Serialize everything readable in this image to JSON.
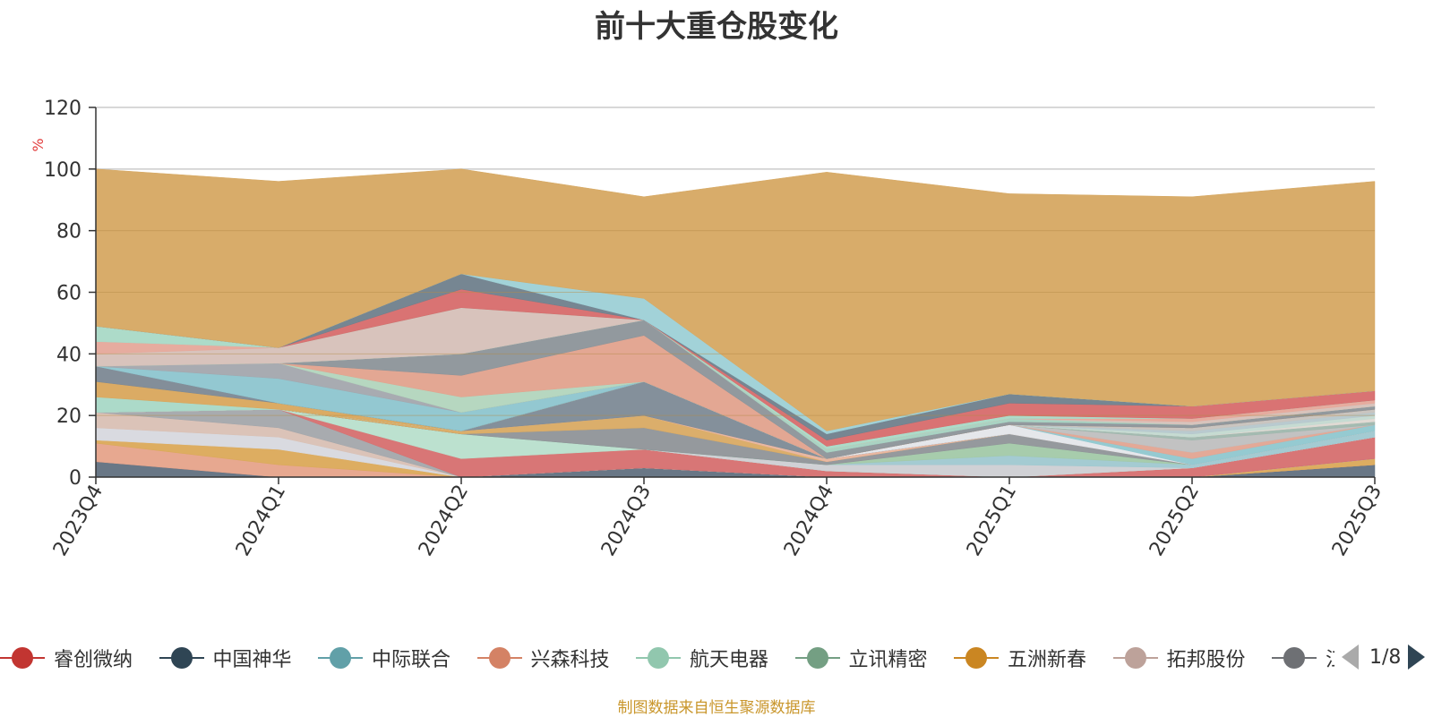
{
  "chart_data": {
    "type": "area",
    "title": "前十大重仓股变化",
    "ylabel": "%",
    "ylim": [
      0,
      120
    ],
    "yticks": [
      "0",
      "20",
      "40",
      "60",
      "80",
      "100",
      "120"
    ],
    "x": [
      "2023Q4",
      "2024Q1",
      "2024Q2",
      "2024Q3",
      "2024Q4",
      "2025Q1",
      "2025Q2",
      "2025Q3"
    ],
    "stacked": true,
    "grid": true,
    "legend_position": "bottom",
    "series": [
      {
        "name": "",
        "color": "#61707f",
        "values": [
          5,
          0,
          0,
          3,
          0,
          0,
          0,
          4
        ]
      },
      {
        "name": "",
        "color": "#e6a38a",
        "values": [
          6,
          4,
          0,
          0,
          0,
          0,
          0,
          0
        ]
      },
      {
        "name": "",
        "color": "#dba958",
        "values": [
          1,
          5,
          0,
          0,
          0,
          0,
          0,
          2
        ]
      },
      {
        "name": "",
        "color": "#d7d8de",
        "values": [
          4,
          4,
          0,
          0,
          0,
          0,
          0,
          0
        ]
      },
      {
        "name": "",
        "color": "#d9c0b4",
        "values": [
          5,
          3,
          0,
          0,
          0,
          0,
          0,
          0
        ]
      },
      {
        "name": "",
        "color": "#a3a6ab",
        "values": [
          0,
          6,
          0,
          0,
          0,
          0,
          0,
          0
        ]
      },
      {
        "name": "",
        "color": "#d66f6f",
        "values": [
          0,
          0,
          6,
          6,
          2,
          0,
          3,
          7
        ]
      },
      {
        "name": "",
        "color": "#b8dfcc",
        "values": [
          0,
          0,
          8,
          0,
          0,
          0,
          0,
          0
        ]
      },
      {
        "name": "",
        "color": "#cdcfd3",
        "values": [
          0,
          0,
          0,
          0,
          2,
          4,
          0,
          0
        ]
      },
      {
        "name": "",
        "color": "#9fc8d0",
        "values": [
          0,
          0,
          0,
          0,
          0,
          3,
          1,
          2
        ]
      },
      {
        "name": "",
        "color": "#a2c9a8",
        "values": [
          0,
          0,
          0,
          0,
          0,
          4,
          0,
          0
        ]
      },
      {
        "name": "",
        "color": "#8f9398",
        "values": [
          0,
          0,
          0,
          7,
          1,
          3,
          0,
          0
        ]
      },
      {
        "name": "",
        "color": "#d9aa63",
        "values": [
          0,
          0,
          1,
          4,
          0,
          0,
          0,
          0
        ]
      },
      {
        "name": "",
        "color": "#e8b49d",
        "values": [
          0,
          0,
          0,
          0,
          1,
          0,
          0,
          0
        ]
      },
      {
        "name": "",
        "color": "#7d8a96",
        "values": [
          0,
          0,
          0,
          11,
          0,
          0,
          0,
          0
        ]
      },
      {
        "name": "",
        "color": "#e4e6ea",
        "values": [
          0,
          0,
          0,
          0,
          0,
          3,
          0,
          0
        ]
      },
      {
        "name": "",
        "color": "#8fc7cf",
        "values": [
          0,
          0,
          0,
          0,
          0,
          0,
          2,
          2
        ]
      },
      {
        "name": "",
        "color": "#e2a491",
        "values": [
          0,
          0,
          0,
          0,
          0,
          0,
          2,
          0
        ]
      },
      {
        "name": "",
        "color": "#bfbfbf",
        "values": [
          0,
          0,
          0,
          0,
          0,
          0,
          4,
          0
        ]
      },
      {
        "name": "",
        "color": "#9fb7ad",
        "values": [
          0,
          0,
          0,
          0,
          0,
          0,
          1,
          1
        ]
      },
      {
        "name": "",
        "color": "#dfd8d2",
        "values": [
          0,
          0,
          0,
          0,
          0,
          0,
          0,
          1
        ]
      },
      {
        "name": "",
        "color": "#c3d9d0",
        "values": [
          0,
          0,
          0,
          0,
          0,
          0,
          1,
          1
        ]
      },
      {
        "name": "",
        "color": "#b5c7cc",
        "values": [
          0,
          0,
          0,
          0,
          0,
          0,
          1,
          1
        ]
      },
      {
        "name": "",
        "color": "#c7c2bd",
        "values": [
          0,
          0,
          0,
          0,
          0,
          0,
          1,
          1
        ]
      },
      {
        "name": "",
        "color": "#a8d8c6",
        "values": [
          5,
          0,
          0,
          0,
          0,
          0,
          0,
          0
        ]
      },
      {
        "name": "",
        "color": "#d9a65c",
        "values": [
          5,
          2,
          0,
          0,
          0,
          0,
          0,
          0
        ]
      },
      {
        "name": "",
        "color": "#7c8894",
        "values": [
          5,
          0,
          0,
          0,
          0,
          0,
          0,
          0
        ]
      },
      {
        "name": "",
        "color": "#8dc5cf",
        "values": [
          0,
          8,
          6,
          0,
          0,
          0,
          0,
          0
        ]
      },
      {
        "name": "",
        "color": "#a3a7ad",
        "values": [
          0,
          5,
          0,
          0,
          0,
          0,
          0,
          0
        ]
      },
      {
        "name": "",
        "color": "#b2d5bd",
        "values": [
          0,
          0,
          5,
          0,
          0,
          0,
          0,
          0
        ]
      },
      {
        "name": "",
        "color": "#e1a28d",
        "values": [
          0,
          0,
          7,
          15,
          0,
          0,
          0,
          0
        ]
      },
      {
        "name": "",
        "color": "#8c9399",
        "values": [
          0,
          0,
          7,
          5,
          2,
          1,
          1,
          1
        ]
      },
      {
        "name": "",
        "color": "#a5d1c0",
        "values": [
          0,
          0,
          0,
          0,
          1,
          1,
          0,
          0
        ]
      },
      {
        "name": "",
        "color": "#d6c0b8",
        "values": [
          4,
          5,
          15,
          0,
          0,
          0,
          1,
          1
        ]
      },
      {
        "name": "",
        "color": "#e5a89a",
        "values": [
          4,
          0,
          0,
          0,
          0,
          0,
          1,
          1
        ]
      },
      {
        "name": "",
        "color": "#a9d9c6",
        "values": [
          5,
          0,
          0,
          0,
          1,
          1,
          0,
          0
        ]
      },
      {
        "name": "",
        "color": "#d76b6b",
        "values": [
          0,
          0,
          6,
          0,
          2,
          4,
          4,
          3
        ]
      },
      {
        "name": "",
        "color": "#6f7f8c",
        "values": [
          0,
          0,
          5,
          0,
          2,
          3,
          0,
          0
        ]
      },
      {
        "name": "",
        "color": "#9dd0d6",
        "values": [
          0,
          0,
          0,
          7,
          1,
          0,
          0,
          0
        ]
      },
      {
        "name": "",
        "color": "#d6a862",
        "values": [
          51,
          54,
          34,
          33,
          84,
          65,
          68,
          68
        ]
      }
    ]
  },
  "legend": {
    "items": [
      {
        "label": "睿创微纳",
        "color": "#c23531"
      },
      {
        "label": "中国神华",
        "color": "#2f4554"
      },
      {
        "label": "中际联合",
        "color": "#61a0a8"
      },
      {
        "label": "兴森科技",
        "color": "#d48265"
      },
      {
        "label": "航天电器",
        "color": "#91c7ae"
      },
      {
        "label": "立讯精密",
        "color": "#749f83"
      },
      {
        "label": "五洲新春",
        "color": "#ca8622"
      },
      {
        "label": "拓邦股份",
        "color": "#bda29a"
      },
      {
        "label": "江",
        "color": "#6e7074"
      }
    ],
    "page_text": "1/8"
  },
  "footnote": "制图数据来自恒生聚源数据库"
}
